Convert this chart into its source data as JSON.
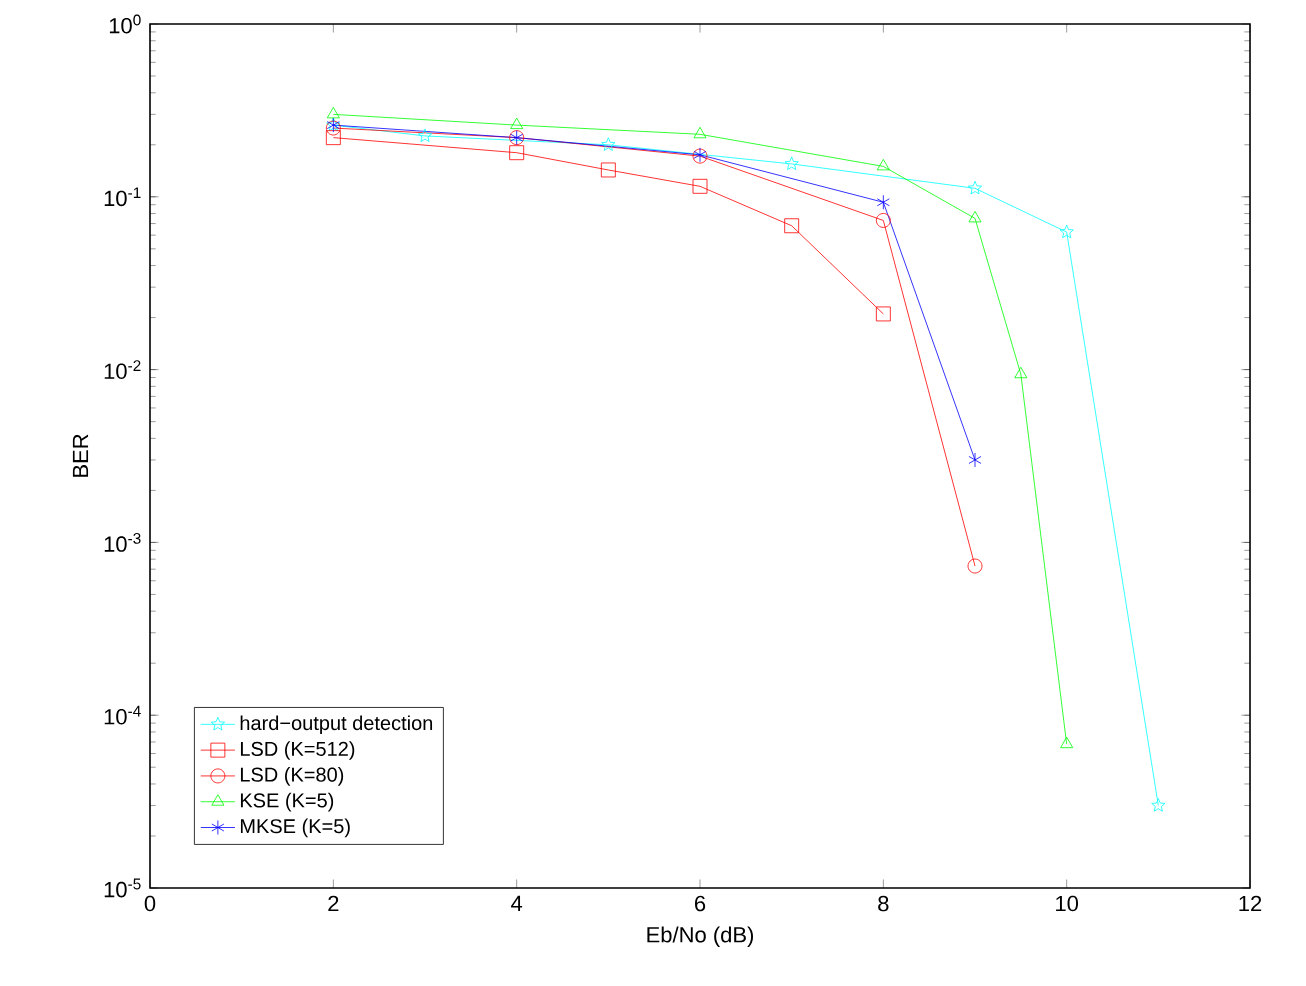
{
  "chart_data": {
    "type": "line",
    "xlabel": "Eb/No (dB)",
    "ylabel": "BER",
    "log": "y",
    "xlim": [
      0,
      12
    ],
    "xticks": [
      0,
      2,
      4,
      6,
      8,
      10,
      12
    ],
    "ylim": [
      1e-05,
      1
    ],
    "yticks": [
      {
        "value": 1e-05,
        "label": "10$^{-5}$"
      },
      {
        "value": 0.0001,
        "label": "10$^{-4}$"
      },
      {
        "value": 0.001,
        "label": "10$^{-3}$"
      },
      {
        "value": 0.01,
        "label": "10$^{-2}$"
      },
      {
        "value": 0.1,
        "label": "10$^{-1}$"
      },
      {
        "value": 1,
        "label": "10$^{0}$"
      }
    ],
    "legend": "bottom left",
    "grid": false,
    "line_style": "solid",
    "series": [
      {
        "name": "hard−output detection",
        "color": "#00ffff",
        "marker": "star",
        "x": [
          2,
          3,
          5,
          7,
          9,
          10,
          11
        ],
        "values": [
          0.26,
          0.225,
          0.2,
          0.155,
          0.112,
          0.0625,
          3e-05
        ]
      },
      {
        "name": "LSD (K=512)",
        "color": "#ff0000",
        "marker": "square",
        "x": [
          2,
          4,
          5,
          6,
          7,
          8
        ],
        "values": [
          0.22,
          0.18,
          0.143,
          0.115,
          0.068,
          0.021
        ]
      },
      {
        "name": "LSD (K=80)",
        "color": "#ff0000",
        "marker": "circle",
        "x": [
          2,
          4,
          6,
          8,
          9
        ],
        "values": [
          0.25,
          0.22,
          0.172,
          0.073,
          0.00073
        ]
      },
      {
        "name": "KSE (K=5)",
        "color": "#00ff00",
        "marker": "triangle",
        "x": [
          2,
          4,
          6,
          8,
          9,
          9.5,
          10
        ],
        "values": [
          0.3,
          0.26,
          0.23,
          0.15,
          0.075,
          0.0094,
          6.8e-05
        ]
      },
      {
        "name": "MKSE (K=5)",
        "color": "#0000ff",
        "marker": "cross",
        "x": [
          2,
          4,
          6,
          8,
          9
        ],
        "values": [
          0.26,
          0.22,
          0.175,
          0.093,
          0.003
        ]
      }
    ]
  }
}
